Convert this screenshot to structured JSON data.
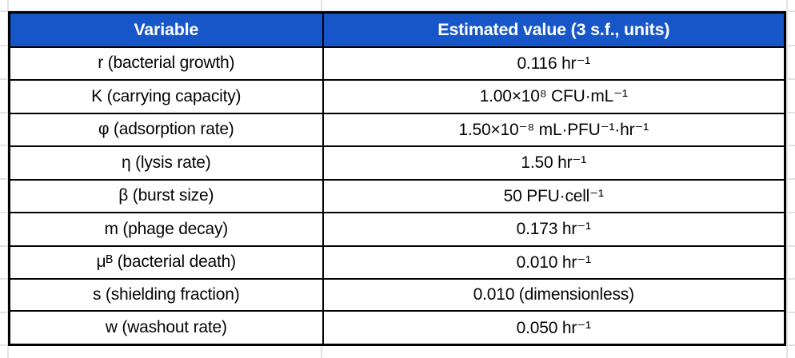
{
  "chart_data": {
    "type": "table",
    "columns": [
      "Variable",
      "Estimated value (3 s.f., units)"
    ],
    "rows": [
      [
        "r (bacterial growth)",
        "0.116 hr⁻¹"
      ],
      [
        "K (carrying capacity)",
        "1.00×10⁸ CFU·mL⁻¹"
      ],
      [
        "φ (adsorption rate)",
        "1.50×10⁻⁸ mL·PFU⁻¹·hr⁻¹"
      ],
      [
        "η (lysis rate)",
        "1.50 hr⁻¹"
      ],
      [
        "β (burst size)",
        "50 PFU·cell⁻¹"
      ],
      [
        "m (phage decay)",
        "0.173 hr⁻¹"
      ],
      [
        "μᴮ (bacterial death)",
        "0.010 hr⁻¹"
      ],
      [
        "s (shielding fraction)",
        "0.010 (dimensionless)"
      ],
      [
        "w (washout rate)",
        "0.050 hr⁻¹"
      ]
    ],
    "layout": "header row highlighted, all cells center-aligned, black cell borders, faint spreadsheet gridlines visible in margins"
  },
  "colors": {
    "header_bg": "#1656C9",
    "header_text": "#FFFFFF",
    "cell_text": "#060606",
    "table_border": "#000000",
    "sheet_gridline": "#E2E2E2",
    "sheet_bg": "#FFFFFF"
  }
}
